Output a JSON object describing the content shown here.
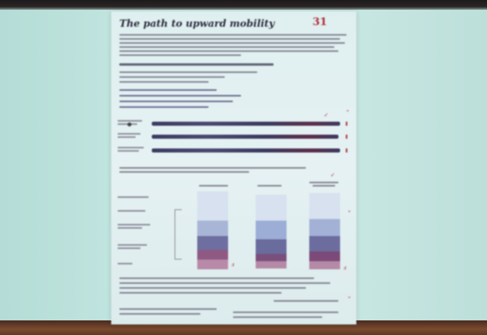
{
  "document": {
    "title": "The path to upward mobility",
    "logo_glyph": "31"
  },
  "colors": {
    "projection_wall": "#c6e8e3",
    "document_paper": "#e3f0f1",
    "bar_dark": "#3b3c62",
    "bar_plum": "#5d2e4a",
    "accent_red": "#b33a45"
  },
  "stacked_columns": [
    {
      "segments": [
        {
          "fraction": 0.38,
          "color": "#d7e1ef"
        },
        {
          "fraction": 0.2,
          "color": "#a8b5d6"
        },
        {
          "fraction": 0.18,
          "color": "#6e6ea0"
        },
        {
          "fraction": 0.12,
          "color": "#8e5a84"
        },
        {
          "fraction": 0.12,
          "color": "#b88aa8"
        }
      ]
    },
    {
      "segments": [
        {
          "fraction": 0.35,
          "color": "#d7e1ef"
        },
        {
          "fraction": 0.25,
          "color": "#9cadd6"
        },
        {
          "fraction": 0.2,
          "color": "#6a6c9e"
        },
        {
          "fraction": 0.1,
          "color": "#7a4f7c"
        },
        {
          "fraction": 0.1,
          "color": "#b58aa6"
        }
      ]
    },
    {
      "segments": [
        {
          "fraction": 0.34,
          "color": "#d7e1ef"
        },
        {
          "fraction": 0.22,
          "color": "#a3b1d6"
        },
        {
          "fraction": 0.2,
          "color": "#6c6c9f"
        },
        {
          "fraction": 0.13,
          "color": "#7c4a78"
        },
        {
          "fraction": 0.11,
          "color": "#b48aa6"
        }
      ]
    }
  ]
}
